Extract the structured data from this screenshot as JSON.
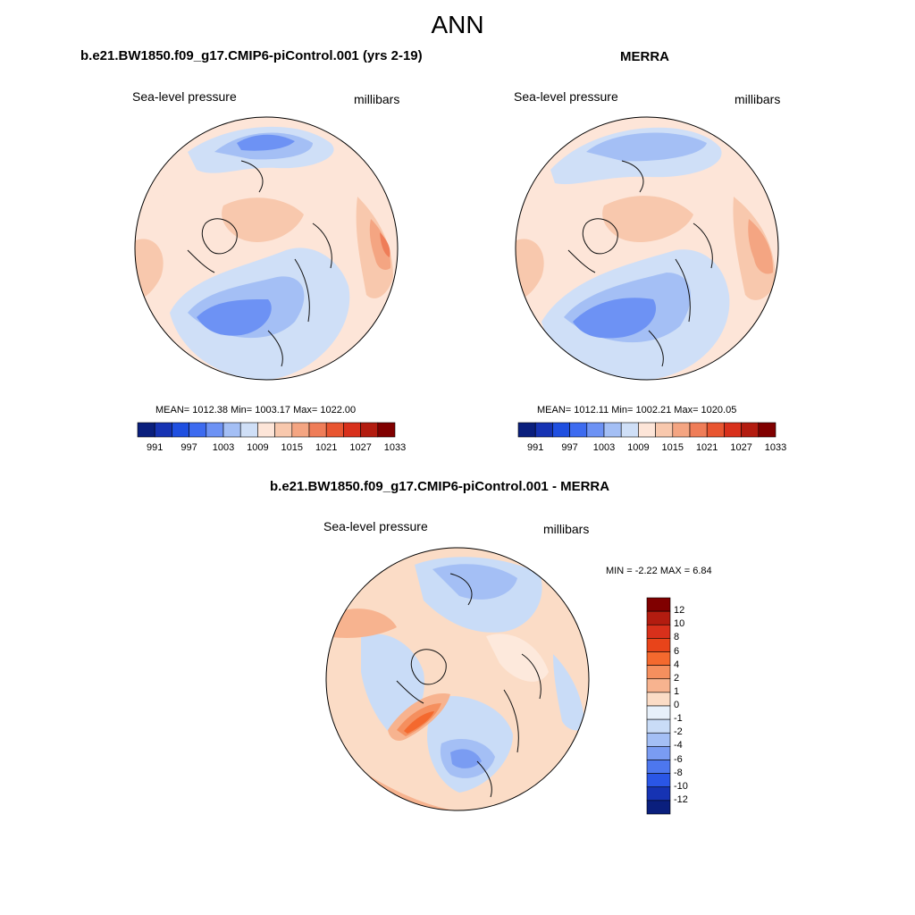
{
  "title": "ANN",
  "panels": [
    {
      "title": "b.e21.BW1850.f09_g17.CMIP6-piControl.001 (yrs 2-19)",
      "left_label": "Sea-level pressure",
      "right_label": "millibars",
      "stats": "MEAN= 1012.38  Min= 1003.17  Max= 1022.00"
    },
    {
      "title": "MERRA",
      "left_label": "Sea-level pressure",
      "right_label": "millibars",
      "stats": "MEAN= 1012.11  Min= 1002.21  Max= 1020.05"
    }
  ],
  "abs_colorbar": {
    "colors": [
      "#0a1f7d",
      "#1633b3",
      "#1f4fe0",
      "#3d6bf0",
      "#6d92f4",
      "#a4bff5",
      "#cfdff7",
      "#fde5d8",
      "#f8c8ad",
      "#f4a582",
      "#ef7d58",
      "#e85530",
      "#d8301b",
      "#b31c10",
      "#800000"
    ],
    "labels": [
      "991",
      "997",
      "1003",
      "1009",
      "1015",
      "1021",
      "1027",
      "1033"
    ]
  },
  "diff": {
    "title": "b.e21.BW1850.f09_g17.CMIP6-piControl.001 - MERRA",
    "left_label": "Sea-level pressure",
    "right_label": "millibars",
    "minmax": "MIN =  -2.22 MAX =   6.84"
  },
  "diff_colorbar": {
    "colors": [
      "#800000",
      "#b31c10",
      "#d8301b",
      "#e8441a",
      "#f4692e",
      "#f58f5e",
      "#f7b38f",
      "#fbdcc6",
      "#e7f0fa",
      "#c9dcf7",
      "#a4bff5",
      "#7a9cf2",
      "#4d77ee",
      "#2a56e6",
      "#1633b3",
      "#0a1f7d"
    ],
    "labels": [
      "12",
      "10",
      "8",
      "6",
      "4",
      "2",
      "1",
      "0",
      "-1",
      "-2",
      "-4",
      "-6",
      "-8",
      "-10",
      "-12"
    ]
  }
}
